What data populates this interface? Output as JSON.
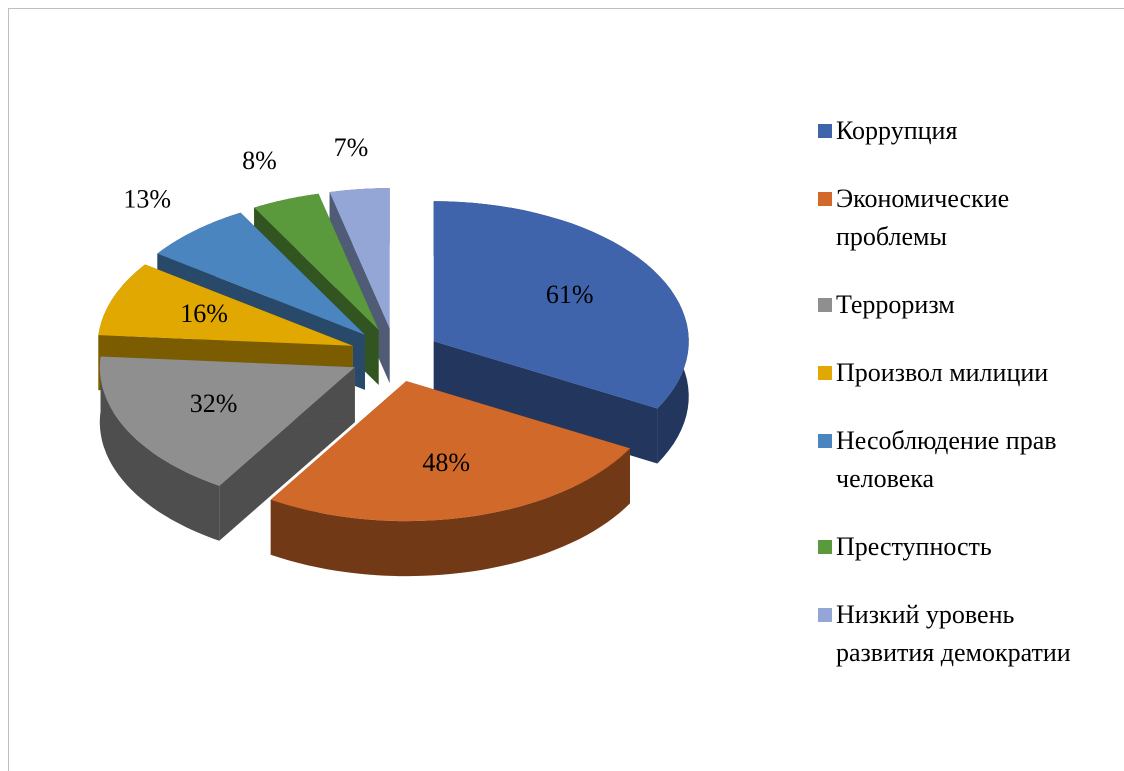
{
  "chart_data": {
    "type": "pie",
    "categories": [
      "Коррупция",
      "Экономические проблемы",
      "Терроризм",
      "Произвол милиции",
      "Несоблюдение прав человека",
      "Преступность",
      "Низкий уровень развития демократии"
    ],
    "values": [
      61,
      48,
      32,
      16,
      13,
      8,
      7
    ],
    "value_labels": [
      "61%",
      "48%",
      "32%",
      "16%",
      "13%",
      "8%",
      "7%"
    ],
    "colors": [
      "#4064ac",
      "#d0692a",
      "#8f8f8f",
      "#e0a800",
      "#4a85c0",
      "#5a9a3c",
      "#93a6d6"
    ],
    "legend": "right"
  }
}
